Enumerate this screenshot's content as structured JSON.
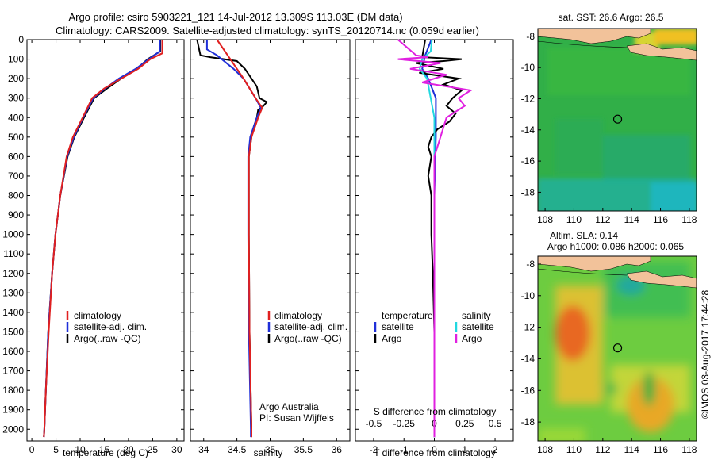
{
  "header": {
    "line1": "Argo profile: csiro 5903221_121 14-Jul-2012 13.309S 113.03E (DM data)",
    "line2": "Climatology: CARS2009. Satellite-adjusted climatology: synTS_20120714.nc (0.059d earlier)"
  },
  "credit": "©IMOS 03-Aug-2017 17:44:28",
  "colors": {
    "clim": "#e02020",
    "sat": "#1f2fd8",
    "argo": "#000000",
    "sal_sat": "#22d8e0",
    "sal_argo": "#e020e0"
  },
  "depth_ticks": [
    "0",
    "100",
    "200",
    "300",
    "400",
    "500",
    "600",
    "700",
    "800",
    "900",
    "1000",
    "1100",
    "1200",
    "1300",
    "1400",
    "1500",
    "1600",
    "1700",
    "1800",
    "1900",
    "2000"
  ],
  "chart_data": [
    {
      "type": "line",
      "name": "temperature-profile",
      "xlabel": "temperature (deg C)",
      "xlim": [
        -1,
        31.5
      ],
      "xticks": [
        "0",
        "5",
        "10",
        "15",
        "20",
        "25",
        "30"
      ],
      "ylim": [
        0,
        2060
      ],
      "legend": [
        "climatology",
        "satellite-adj. clim.",
        "Argo(..raw -QC)"
      ],
      "series": [
        {
          "name": "climatology",
          "depth": [
            0,
            70,
            100,
            150,
            200,
            250,
            300,
            400,
            500,
            600,
            800,
            1000,
            1200,
            1500,
            1800,
            2000,
            2040
          ],
          "values": [
            27,
            27,
            24.5,
            22,
            18.5,
            15,
            12.5,
            10.5,
            8.5,
            7.2,
            5.9,
            4.9,
            4.2,
            3.5,
            2.9,
            2.6,
            2.5
          ]
        },
        {
          "name": "satellite-adj. clim.",
          "depth": [
            0,
            60,
            100,
            150,
            200,
            250,
            300,
            400,
            500,
            600,
            800,
            1000,
            1200,
            1500,
            1800,
            2000,
            2040
          ],
          "values": [
            26.5,
            26.5,
            24.2,
            21.5,
            18,
            15.2,
            12.7,
            10.6,
            8.7,
            7.3,
            5.9,
            4.9,
            4.2,
            3.4,
            2.9,
            2.6,
            2.5
          ]
        },
        {
          "name": "Argo",
          "depth": [
            0,
            60,
            100,
            150,
            200,
            250,
            300,
            400,
            500,
            600,
            800,
            1000,
            1200,
            1500,
            1800,
            2000,
            2040
          ],
          "values": [
            26.6,
            26.6,
            24,
            21.7,
            18.5,
            15.6,
            12.9,
            10.8,
            8.8,
            7.4,
            5.9,
            4.9,
            4.2,
            3.4,
            2.9,
            2.6,
            2.5
          ]
        }
      ]
    },
    {
      "type": "line",
      "name": "salinity-profile",
      "xlabel": "salinity",
      "xlim": [
        33.8,
        36.2
      ],
      "xticks": [
        "34",
        "34.5",
        "35",
        "35.5",
        "36"
      ],
      "ylim": [
        0,
        2060
      ],
      "legend": [
        "climatology",
        "satellite-adj. clim.",
        "Argo(..raw -QC)"
      ],
      "annotation": [
        "Argo Australia",
        "PI: Susan Wijffels"
      ],
      "series": [
        {
          "name": "climatology",
          "depth": [
            0,
            100,
            200,
            300,
            350,
            400,
            500,
            600,
            800,
            1000,
            1500,
            2000,
            2040
          ],
          "values": [
            34.2,
            34.4,
            34.6,
            34.78,
            34.88,
            34.82,
            34.72,
            34.68,
            34.68,
            34.68,
            34.69,
            34.72,
            34.72
          ]
        },
        {
          "name": "satellite-adj. clim.",
          "depth": [
            0,
            50,
            80,
            150,
            200,
            300,
            350,
            400,
            500,
            600,
            800,
            1000,
            1500,
            2000,
            2040
          ],
          "values": [
            34.05,
            34.05,
            34.2,
            34.45,
            34.6,
            34.78,
            34.86,
            34.8,
            34.7,
            34.67,
            34.67,
            34.67,
            34.68,
            34.71,
            34.71
          ]
        },
        {
          "name": "Argo",
          "depth": [
            0,
            80,
            90,
            110,
            150,
            200,
            240,
            300,
            320,
            340,
            360,
            400,
            450,
            500,
            600,
            800,
            1000,
            1500,
            2000,
            2040
          ],
          "values": [
            33.9,
            33.95,
            34.1,
            34.5,
            34.62,
            34.72,
            34.8,
            34.84,
            34.95,
            34.9,
            34.82,
            34.8,
            34.75,
            34.72,
            34.68,
            34.68,
            34.68,
            34.69,
            34.72,
            34.72
          ]
        }
      ]
    },
    {
      "type": "line",
      "name": "difference-profile",
      "xlabel": "T difference from climatology",
      "xlabel_top": "S difference from climatology",
      "xlim": [
        -2.6,
        2.6
      ],
      "xticks_bottom": [
        "-2",
        "-1",
        "0",
        "1",
        "2"
      ],
      "xticks_top": [
        "-0.5",
        "-0.25",
        "0",
        "0.25",
        "0.5"
      ],
      "ylim": [
        0,
        2060
      ],
      "legend_left_title": "temperature",
      "legend_right_title": "salinity",
      "legend_left": [
        "satellite",
        "Argo"
      ],
      "legend_right": [
        "satellite",
        "Argo"
      ],
      "series": [
        {
          "name": "temperature satellite",
          "depth": [
            0,
            80,
            150,
            200,
            300,
            500,
            800,
            1200,
            2000,
            2040
          ],
          "values": [
            -0.1,
            -0.3,
            -0.4,
            -0.2,
            0.05,
            0.05,
            0.0,
            0.0,
            0.0,
            0.0
          ]
        },
        {
          "name": "temperature Argo",
          "depth": [
            0,
            90,
            100,
            110,
            120,
            150,
            170,
            200,
            230,
            260,
            300,
            340,
            380,
            420,
            460,
            500,
            550,
            600,
            700,
            800,
            1000,
            1200,
            1500,
            2000,
            2040
          ],
          "values": [
            -0.3,
            -0.4,
            0.9,
            0.3,
            -0.6,
            0.3,
            -0.5,
            0.8,
            0.3,
            0.9,
            0.6,
            0.4,
            0.7,
            0.5,
            0.1,
            -0.1,
            -0.2,
            -0.1,
            -0.2,
            -0.1,
            -0.1,
            -0.05,
            0.0,
            0.0,
            0.0
          ]
        },
        {
          "name": "salinity satellite",
          "depth": [
            0,
            60,
            100,
            150,
            200,
            300,
            400,
            600,
            1000,
            2000,
            2040
          ],
          "values": [
            -0.02,
            -0.03,
            -0.1,
            -0.12,
            -0.06,
            -0.03,
            0.0,
            0.0,
            0.0,
            0.0,
            0.0
          ]
        },
        {
          "name": "salinity Argo",
          "depth": [
            0,
            80,
            90,
            100,
            120,
            150,
            180,
            220,
            260,
            300,
            340,
            400,
            500,
            600,
            800,
            1000,
            2000,
            2040
          ],
          "values": [
            -0.3,
            -0.15,
            -0.05,
            -0.3,
            0.05,
            -0.2,
            0.1,
            -0.1,
            0.3,
            0.2,
            0.25,
            0.1,
            0.05,
            0.0,
            0.0,
            0.0,
            0.0,
            0.0
          ]
        }
      ]
    },
    {
      "type": "heatmap",
      "name": "sst-map",
      "title": "sat. SST: 26.6 Argo: 26.5",
      "xlim": [
        107.5,
        118.5
      ],
      "ylim": [
        -19.2,
        -7.5
      ],
      "xticks": [
        "108",
        "110",
        "112",
        "114",
        "116",
        "118"
      ],
      "yticks": [
        "-8",
        "-10",
        "-12",
        "-14",
        "-16",
        "-18"
      ],
      "marker": {
        "lon": 113.03,
        "lat": -13.309
      }
    },
    {
      "type": "heatmap",
      "name": "sla-map",
      "title_lines": [
        "Altim. SLA: 0.14",
        "Argo h1000: 0.086 h2000: 0.065"
      ],
      "xlim": [
        107.5,
        118.5
      ],
      "ylim": [
        -19.2,
        -7.5
      ],
      "xticks": [
        "108",
        "110",
        "112",
        "114",
        "116",
        "118"
      ],
      "yticks": [
        "-8",
        "-10",
        "-12",
        "-14",
        "-16",
        "-18"
      ],
      "marker": {
        "lon": 113.03,
        "lat": -13.309
      }
    }
  ]
}
